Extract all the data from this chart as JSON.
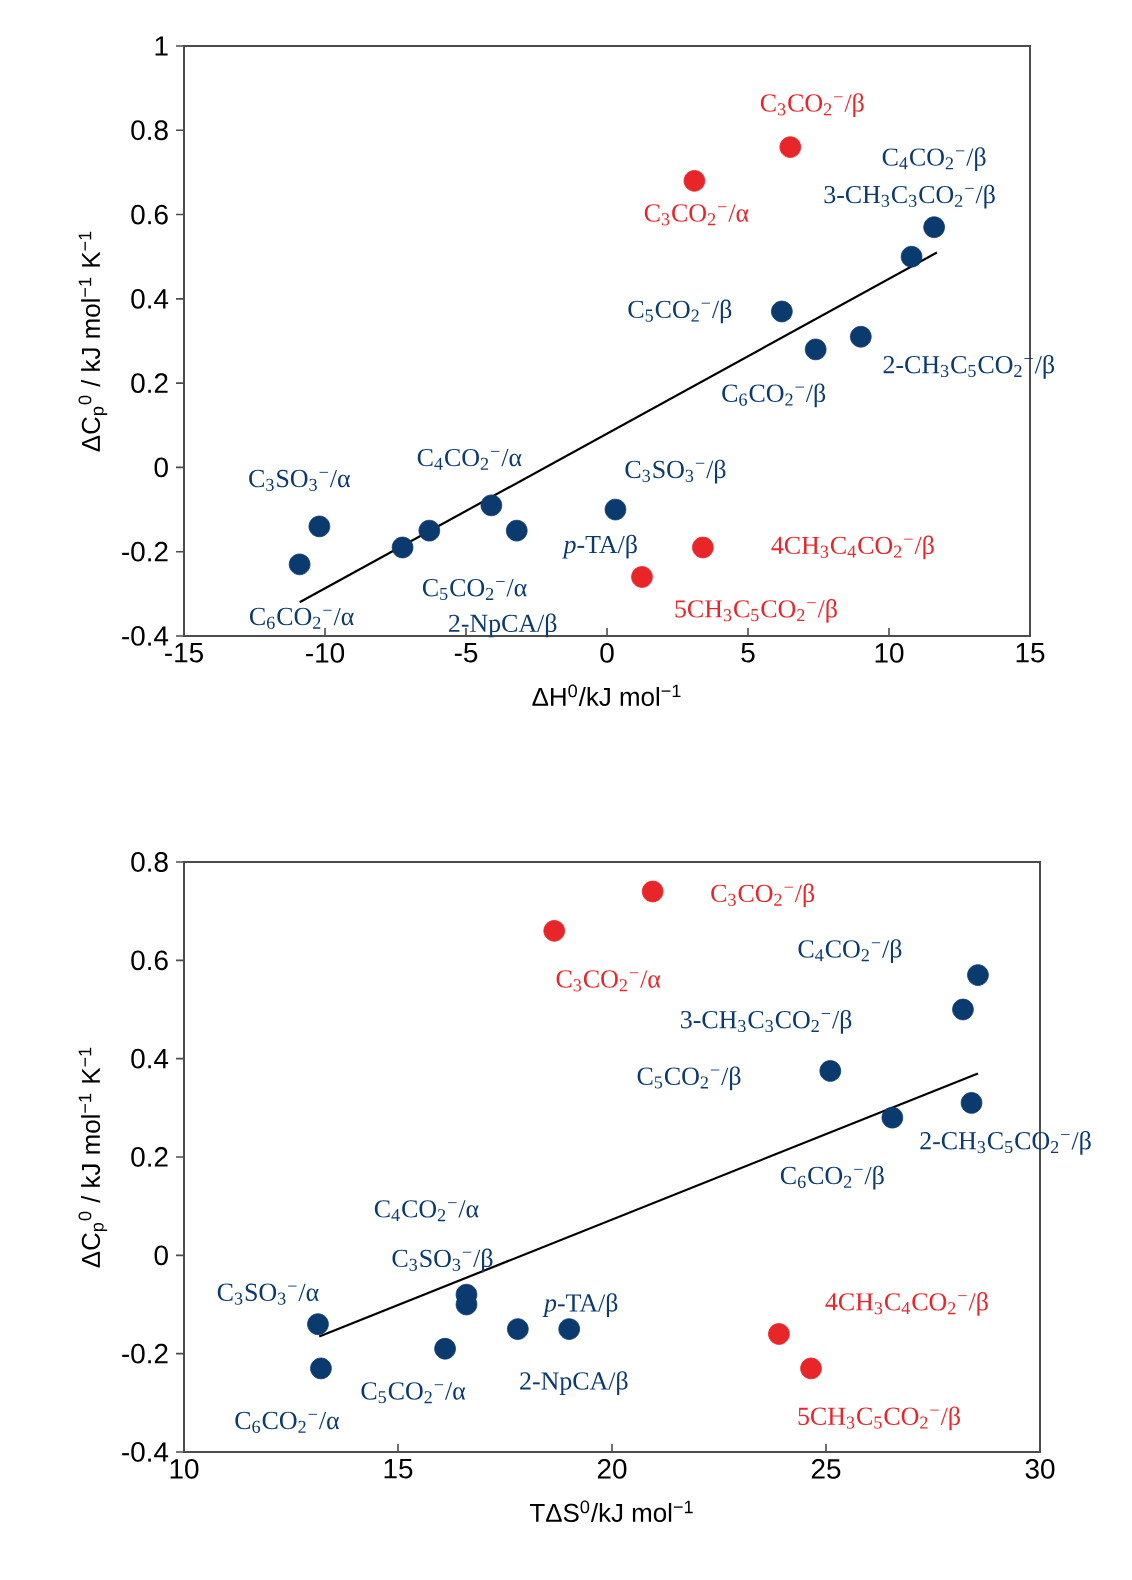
{
  "chart_data": [
    {
      "type": "scatter",
      "xlabel": "ΔH$^{0}$/kJ mol$^{−1}$",
      "ylabel": "ΔC$_{p}$$^{0}$ / kJ mol$^{−1}$ K$^{−1}$",
      "xlim": [
        -15,
        15
      ],
      "xticks": [
        -15,
        -10,
        -5,
        0,
        5,
        10,
        15
      ],
      "ylim": [
        -0.4,
        1
      ],
      "yticks": [
        -0.4,
        -0.2,
        0,
        0.2,
        0.4,
        0.6,
        0.8,
        1
      ],
      "marker": "circle",
      "series": [
        {
          "color": "#0b3a6e",
          "x": [
            11.6,
            10.8,
            6.2,
            7.4,
            9.0,
            -10.2,
            -4.1,
            0.3,
            -3.2,
            -6.3,
            -7.25,
            -10.9
          ],
          "values": [
            0.57,
            0.5,
            0.37,
            0.28,
            0.31,
            -0.14,
            -0.09,
            -0.1,
            -0.15,
            -0.15,
            -0.19,
            -0.23
          ]
        },
        {
          "color": "#e8262a",
          "x": [
            6.5,
            3.1,
            3.4,
            1.24
          ],
          "values": [
            0.76,
            0.68,
            -0.19,
            -0.26
          ]
        },
        {
          "type": "line",
          "color": "#000000",
          "marker": "none",
          "x": [
            -10.9,
            11.7
          ],
          "values": [
            -0.32,
            0.51
          ]
        }
      ],
      "annotations": [
        {
          "text": "C$_{3}$CO$_{2}$$^{−}$/β",
          "x": 6.5,
          "y": 0.76
        },
        {
          "text": "C$_{3}$CO$_{2}$$^{−}$/α",
          "x": 3.1,
          "y": 0.68
        },
        {
          "text": "C$_{4}$CO$_{2}$$^{−}$/β",
          "x": 11.6,
          "y": 0.57
        },
        {
          "text": "3-CH$_{3}$C$_{3}$CO$_{2}$$^{−}$/β",
          "x": 10.8,
          "y": 0.5
        },
        {
          "text": "C$_{5}$CO$_{2}$$^{−}$/β",
          "x": 6.2,
          "y": 0.37
        },
        {
          "text": "C$_{6}$CO$_{2}$$^{−}$/β",
          "x": 7.4,
          "y": 0.28
        },
        {
          "text": "2-CH$_{3}$C$_{5}$CO$_{2}$$^{−}$/β",
          "x": 9.0,
          "y": 0.31
        },
        {
          "text": "C$_{3}$SO$_{3}$$^{−}$/α",
          "x": -10.2,
          "y": -0.14
        },
        {
          "text": "C$_{4}$CO$_{2}$$^{−}$/α",
          "x": -4.1,
          "y": -0.09
        },
        {
          "text": "C$_{3}$SO$_{3}$$^{−}$/β",
          "x": 0.3,
          "y": -0.1
        },
        {
          "text": "*p*-TA/β",
          "x": -3.2,
          "y": -0.15
        },
        "2-NpCA/β",
        {
          "text": "C$_{5}$CO$_{2}$$^{−}$/α",
          "x": -7.25,
          "y": -0.19
        },
        {
          "text": "C$_{6}$CO$_{2}$$^{−}$/α",
          "x": -10.9,
          "y": -0.23
        },
        {
          "text": "4CH$_{3}$C$_{4}$CO$_{2}$$^{−}$/β",
          "x": 3.4,
          "y": -0.19
        },
        {
          "text": "5CH$_{3}$C$_{5}$CO$_{2}$$^{−}$/β",
          "x": 1.24,
          "y": -0.26
        }
      ]
    },
    {
      "type": "scatter",
      "xlabel": "TΔS$^{0}$/kJ mol$^{−1}$",
      "ylabel": "ΔC$_{p}$$^{0}$ / kJ mol$^{−1}$ K$^{−1}$",
      "xlim": [
        10,
        30
      ],
      "xticks": [
        10,
        15,
        20,
        25,
        30
      ],
      "ylim": [
        -0.4,
        0.8
      ],
      "yticks": [
        -0.4,
        -0.2,
        0,
        0.2,
        0.4,
        0.6,
        0.8
      ],
      "marker": "circle",
      "series": [
        {
          "color": "#0b3a6e",
          "x": [
            28.55,
            28.2,
            25.1,
            26.55,
            28.4,
            16.6,
            16.6,
            13.13,
            19.0,
            16.1,
            17.8,
            13.2
          ],
          "values": [
            0.57,
            0.5,
            0.375,
            0.28,
            0.31,
            -0.08,
            -0.1,
            -0.14,
            -0.15,
            -0.19,
            -0.15,
            -0.23
          ]
        },
        {
          "color": "#e8262a",
          "x": [
            20.95,
            18.65,
            23.9,
            24.65
          ],
          "values": [
            0.74,
            0.66,
            -0.16,
            -0.23
          ]
        },
        {
          "type": "line",
          "color": "#000000",
          "marker": "none",
          "x": [
            13.16,
            28.55
          ],
          "values": [
            -0.165,
            0.37
          ]
        }
      ],
      "annotations": [
        {
          "text": "C$_{3}$CO$_{2}$$^{−}$/β",
          "x": 20.95,
          "y": 0.74
        },
        {
          "text": "C$_{3}$CO$_{2}$$^{−}$/α",
          "x": 18.65,
          "y": 0.66
        },
        {
          "text": "C$_{4}$CO$_{2}$$^{−}$/β",
          "x": 28.55,
          "y": 0.57
        },
        "3-CH$_{3}$C$_{3}$CO$_{2}$$^{−}$/β",
        "C$_{5}$CO$_{2}$$^{−}$/β",
        {
          "text": "C$_{6}$CO$_{2}$$^{−}$/β",
          "x": 26.55,
          "y": 0.28
        },
        {
          "text": "2-CH$_{3}$C$_{5}$CO$_{2}$$^{−}$/β",
          "x": 28.4,
          "y": 0.31
        },
        {
          "text": "C$_{4}$CO$_{2}$$^{−}$/α",
          "x": 16.6,
          "y": -0.08
        },
        {
          "text": "C$_{3}$SO$_{3}$$^{−}$/β",
          "x": 16.6,
          "y": -0.1
        },
        {
          "text": "C$_{3}$SO$_{3}$$^{−}$/α",
          "x": 13.13,
          "y": -0.14
        },
        {
          "text": "*p*-TA/β",
          "x": 19.0,
          "y": -0.15
        },
        {
          "text": "C$_{5}$CO$_{2}$$^{−}$/α",
          "x": 16.1,
          "y": -0.19
        },
        {
          "text": "2-NpCA/β",
          "x": 17.8,
          "y": -0.15
        },
        {
          "text": "C$_{6}$CO$_{2}$$^{−}$/α",
          "x": 13.2,
          "y": -0.23
        },
        {
          "text": "4CH$_{3}$C$_{4}$CO$_{2}$$^{−}$/β",
          "x": 23.9,
          "y": -0.16
        },
        {
          "text": "5CH$_{3}$C$_{5}$CO$_{2}$$^{−}$/β",
          "x": 24.65,
          "y": -0.23
        }
      ]
    }
  ]
}
